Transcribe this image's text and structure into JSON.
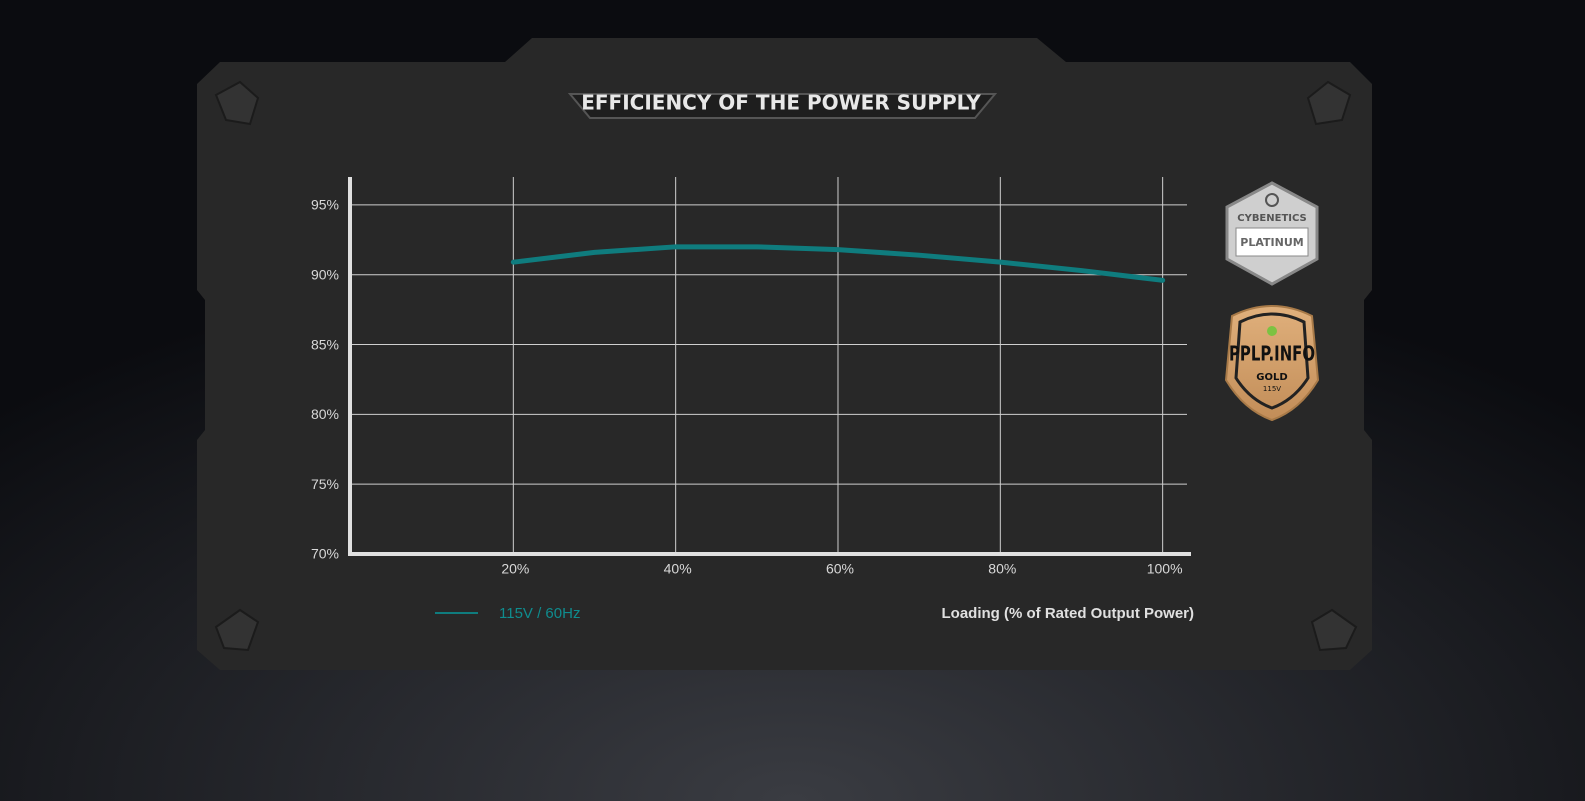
{
  "chart_data": {
    "type": "line",
    "title": "EFFICIENCY OF THE POWER SUPPLY",
    "x_label": "Loading (% of Rated Output Power)",
    "x": [
      20,
      30,
      40,
      50,
      60,
      70,
      80,
      90,
      100
    ],
    "series": [
      {
        "name": "115V / 60Hz",
        "color": "#0f7c7e",
        "values": [
          90.9,
          91.6,
          92.0,
          92.0,
          91.8,
          91.4,
          90.9,
          90.3,
          89.6
        ]
      }
    ],
    "xlim": [
      0,
      103
    ],
    "ylim": [
      70,
      97
    ],
    "xticks": [
      {
        "value": 20,
        "label": "20%"
      },
      {
        "value": 40,
        "label": "40%"
      },
      {
        "value": 60,
        "label": "60%"
      },
      {
        "value": 80,
        "label": "80%"
      },
      {
        "value": 100,
        "label": "100%"
      }
    ],
    "yticks": [
      {
        "value": 70,
        "label": "70%"
      },
      {
        "value": 75,
        "label": "75%"
      },
      {
        "value": 80,
        "label": "80%"
      },
      {
        "value": 85,
        "label": "85%"
      },
      {
        "value": 90,
        "label": "90%"
      },
      {
        "value": 95,
        "label": "95%"
      }
    ],
    "grid": true
  },
  "badges": [
    {
      "brand": "CYBENETICS",
      "level": "PLATINUM"
    },
    {
      "brand": "PPLP.INFO",
      "level": "GOLD",
      "note": "115V"
    }
  ]
}
